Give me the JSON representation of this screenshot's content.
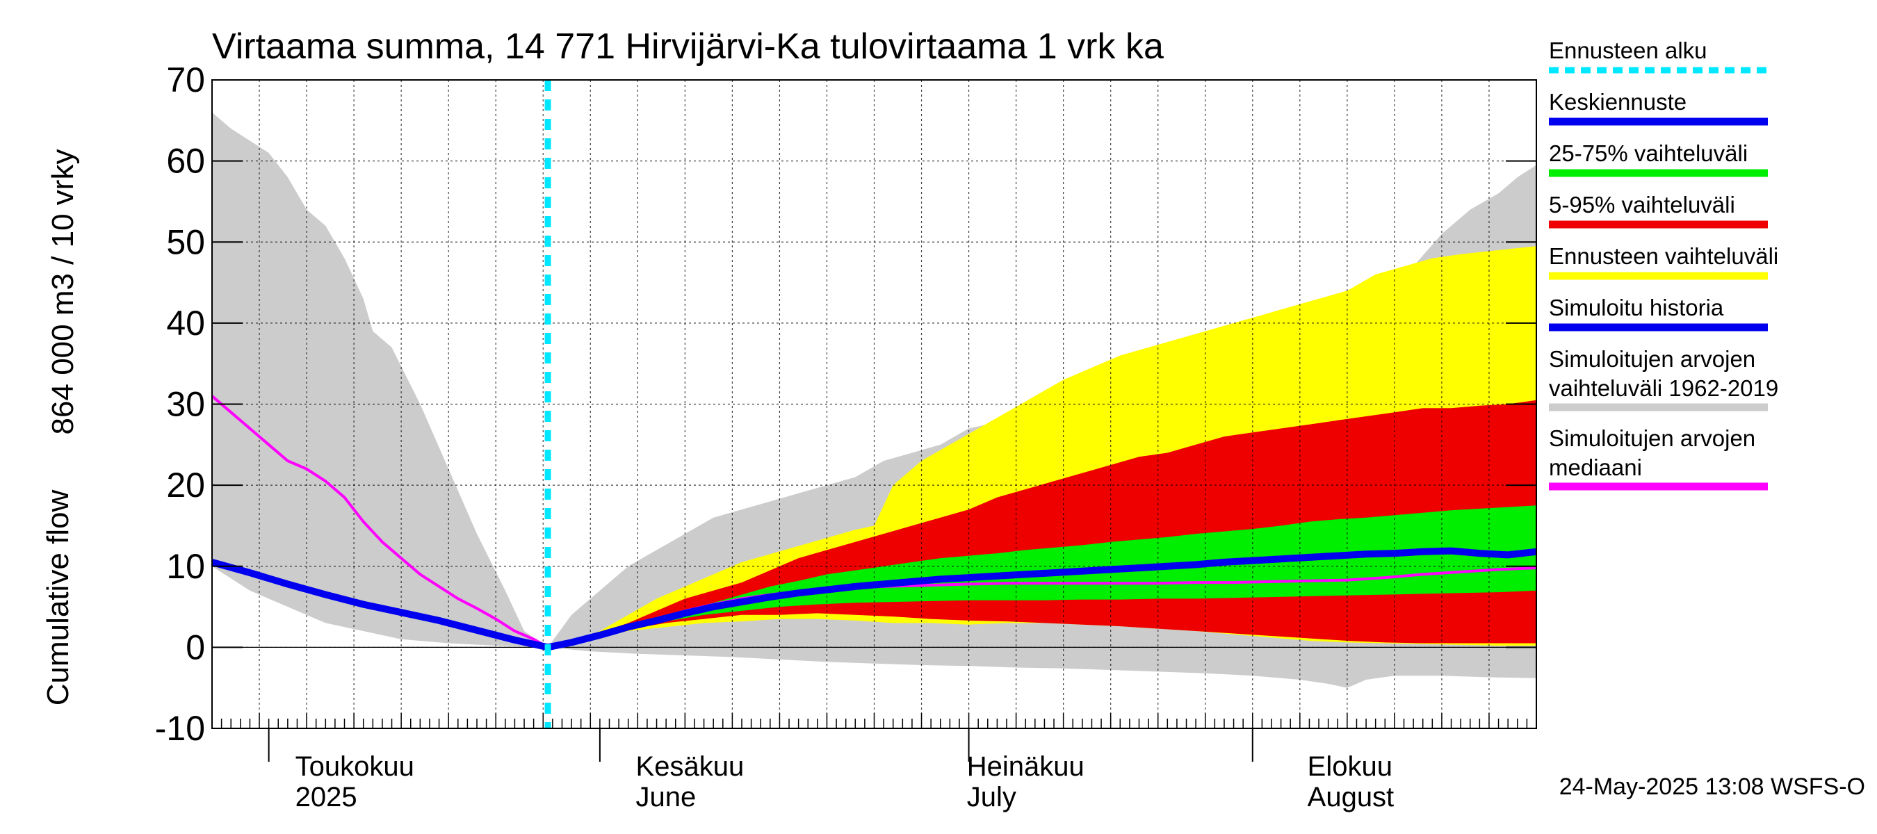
{
  "chart_data": {
    "type": "area",
    "title": "Virtaama summa, 14 771 Hirvijärvi-Ka tulovirtaama 1 vrk ka",
    "ylabel_line1": "864 000 m3 / 10 vrky",
    "ylabel_line2": "Cumulative flow",
    "ylim": [
      -10,
      70
    ],
    "xlim": [
      0,
      140
    ],
    "yticks": [
      -10,
      0,
      10,
      20,
      30,
      40,
      50,
      60,
      70
    ],
    "grid": true,
    "legend_position": "right",
    "forecast_start_x": 35.5,
    "month_labels": [
      {
        "x": 11,
        "line1": "Toukokuu",
        "line2": "2025"
      },
      {
        "x": 47,
        "line1": "Kesäkuu",
        "line2": "June"
      },
      {
        "x": 82,
        "line1": "Heinäkuu",
        "line2": "July"
      },
      {
        "x": 118,
        "line1": "Elokuu",
        "line2": "August"
      }
    ],
    "month_boundaries": [
      6,
      41,
      80,
      110
    ],
    "sim_range_upper": [
      [
        0,
        66
      ],
      [
        2,
        64
      ],
      [
        6,
        61
      ],
      [
        8,
        58
      ],
      [
        10,
        54
      ],
      [
        12,
        52
      ],
      [
        14,
        48
      ],
      [
        16,
        43
      ],
      [
        17,
        39
      ],
      [
        19,
        37
      ],
      [
        22,
        30
      ],
      [
        25,
        22
      ],
      [
        28,
        14
      ],
      [
        31,
        7
      ],
      [
        33,
        2
      ],
      [
        35.5,
        0
      ],
      [
        38,
        4
      ],
      [
        41,
        7
      ],
      [
        44,
        10
      ],
      [
        47,
        12
      ],
      [
        50,
        14
      ],
      [
        53,
        16
      ],
      [
        56,
        17
      ],
      [
        59,
        18
      ],
      [
        62,
        19
      ],
      [
        65,
        20
      ],
      [
        68,
        21
      ],
      [
        71,
        23
      ],
      [
        74,
        24
      ],
      [
        77,
        25
      ],
      [
        80,
        27
      ],
      [
        84,
        28
      ],
      [
        88,
        29
      ],
      [
        92,
        30
      ],
      [
        96,
        31
      ],
      [
        100,
        32
      ],
      [
        104,
        33
      ],
      [
        108,
        34
      ],
      [
        112,
        35
      ],
      [
        115,
        36
      ],
      [
        118,
        38
      ],
      [
        121,
        40
      ],
      [
        124,
        43
      ],
      [
        127,
        47
      ],
      [
        130,
        51
      ],
      [
        133,
        54
      ],
      [
        136,
        56
      ],
      [
        138,
        58
      ],
      [
        140,
        59.5
      ]
    ],
    "sim_range_lower": [
      [
        0,
        10
      ],
      [
        4,
        7
      ],
      [
        8,
        5
      ],
      [
        12,
        3
      ],
      [
        16,
        2
      ],
      [
        20,
        1
      ],
      [
        25,
        0.5
      ],
      [
        30,
        0.2
      ],
      [
        35.5,
        0
      ],
      [
        40,
        -0.5
      ],
      [
        45,
        -0.8
      ],
      [
        50,
        -1
      ],
      [
        55,
        -1.2
      ],
      [
        60,
        -1.5
      ],
      [
        65,
        -1.8
      ],
      [
        70,
        -2
      ],
      [
        75,
        -2.2
      ],
      [
        80,
        -2.3
      ],
      [
        85,
        -2.5
      ],
      [
        90,
        -2.6
      ],
      [
        95,
        -2.8
      ],
      [
        100,
        -3
      ],
      [
        105,
        -3.2
      ],
      [
        110,
        -3.5
      ],
      [
        115,
        -4
      ],
      [
        118,
        -4.5
      ],
      [
        120,
        -5
      ],
      [
        122,
        -4
      ],
      [
        125,
        -3.5
      ],
      [
        130,
        -3.5
      ],
      [
        135,
        -3.7
      ],
      [
        140,
        -3.8
      ]
    ],
    "forecast_range_upper": [
      [
        35.5,
        0
      ],
      [
        38,
        0.8
      ],
      [
        41,
        2
      ],
      [
        44,
        4
      ],
      [
        47,
        6
      ],
      [
        50,
        7.5
      ],
      [
        53,
        9
      ],
      [
        56,
        10.5
      ],
      [
        59,
        11.5
      ],
      [
        62,
        12.5
      ],
      [
        65,
        13.5
      ],
      [
        68,
        14.5
      ],
      [
        70,
        15
      ],
      [
        72,
        20
      ],
      [
        75,
        23
      ],
      [
        78,
        25
      ],
      [
        81,
        27
      ],
      [
        84,
        29
      ],
      [
        87,
        31
      ],
      [
        90,
        33
      ],
      [
        93,
        34.5
      ],
      [
        96,
        36
      ],
      [
        99,
        37
      ],
      [
        102,
        38
      ],
      [
        105,
        39
      ],
      [
        108,
        40
      ],
      [
        111,
        41
      ],
      [
        114,
        42
      ],
      [
        117,
        43
      ],
      [
        120,
        44
      ],
      [
        123,
        46
      ],
      [
        126,
        47
      ],
      [
        129,
        48
      ],
      [
        132,
        48.5
      ],
      [
        136,
        49
      ],
      [
        140,
        49.5
      ]
    ],
    "forecast_range_lower": [
      [
        35.5,
        0
      ],
      [
        40,
        1
      ],
      [
        44,
        2
      ],
      [
        48,
        2.5
      ],
      [
        52,
        3
      ],
      [
        56,
        3.2
      ],
      [
        60,
        3.5
      ],
      [
        64,
        3.5
      ],
      [
        68,
        3.3
      ],
      [
        72,
        3
      ],
      [
        76,
        3
      ],
      [
        80,
        2.8
      ],
      [
        84,
        3
      ],
      [
        88,
        3
      ],
      [
        92,
        2.8
      ],
      [
        96,
        2.6
      ],
      [
        100,
        2.3
      ],
      [
        104,
        2
      ],
      [
        108,
        1.6
      ],
      [
        112,
        1.2
      ],
      [
        116,
        0.8
      ],
      [
        120,
        0.6
      ],
      [
        124,
        0.5
      ],
      [
        128,
        0.4
      ],
      [
        132,
        0.3
      ],
      [
        136,
        0.2
      ],
      [
        140,
        0.2
      ]
    ],
    "p5_95_upper": [
      [
        35.5,
        0
      ],
      [
        38,
        0.7
      ],
      [
        41,
        1.8
      ],
      [
        44,
        3
      ],
      [
        47,
        4.5
      ],
      [
        50,
        6
      ],
      [
        53,
        7
      ],
      [
        56,
        8
      ],
      [
        59,
        9.5
      ],
      [
        62,
        11
      ],
      [
        65,
        12
      ],
      [
        68,
        13
      ],
      [
        71,
        14
      ],
      [
        74,
        15
      ],
      [
        77,
        16
      ],
      [
        80,
        17
      ],
      [
        83,
        18.5
      ],
      [
        86,
        19.5
      ],
      [
        89,
        20.5
      ],
      [
        92,
        21.5
      ],
      [
        95,
        22.5
      ],
      [
        98,
        23.5
      ],
      [
        101,
        24
      ],
      [
        104,
        25
      ],
      [
        107,
        26
      ],
      [
        110,
        26.5
      ],
      [
        113,
        27
      ],
      [
        116,
        27.5
      ],
      [
        119,
        28
      ],
      [
        122,
        28.5
      ],
      [
        125,
        29
      ],
      [
        128,
        29.5
      ],
      [
        131,
        29.5
      ],
      [
        134,
        29.8
      ],
      [
        137,
        30
      ],
      [
        140,
        30.5
      ]
    ],
    "p5_95_lower": [
      [
        35.5,
        0
      ],
      [
        40,
        1.2
      ],
      [
        44,
        2.2
      ],
      [
        48,
        3
      ],
      [
        52,
        3.5
      ],
      [
        56,
        4
      ],
      [
        60,
        4
      ],
      [
        64,
        4.2
      ],
      [
        68,
        4
      ],
      [
        72,
        3.8
      ],
      [
        76,
        3.5
      ],
      [
        80,
        3.3
      ],
      [
        84,
        3.2
      ],
      [
        88,
        3
      ],
      [
        92,
        2.8
      ],
      [
        96,
        2.6
      ],
      [
        100,
        2.3
      ],
      [
        104,
        2
      ],
      [
        108,
        1.7
      ],
      [
        112,
        1.4
      ],
      [
        116,
        1.1
      ],
      [
        120,
        0.8
      ],
      [
        124,
        0.6
      ],
      [
        128,
        0.5
      ],
      [
        132,
        0.5
      ],
      [
        136,
        0.5
      ],
      [
        140,
        0.5
      ]
    ],
    "p25_75_upper": [
      [
        35.5,
        0
      ],
      [
        38,
        0.6
      ],
      [
        41,
        1.5
      ],
      [
        44,
        2.5
      ],
      [
        47,
        3.5
      ],
      [
        50,
        4.5
      ],
      [
        53,
        5.5
      ],
      [
        56,
        6.5
      ],
      [
        59,
        7.5
      ],
      [
        62,
        8.2
      ],
      [
        65,
        9
      ],
      [
        68,
        9.5
      ],
      [
        71,
        10
      ],
      [
        74,
        10.5
      ],
      [
        77,
        11
      ],
      [
        80,
        11.3
      ],
      [
        83,
        11.6
      ],
      [
        86,
        12
      ],
      [
        89,
        12.3
      ],
      [
        92,
        12.6
      ],
      [
        95,
        13
      ],
      [
        98,
        13.3
      ],
      [
        101,
        13.6
      ],
      [
        104,
        14
      ],
      [
        107,
        14.3
      ],
      [
        110,
        14.6
      ],
      [
        113,
        15
      ],
      [
        116,
        15.5
      ],
      [
        119,
        15.8
      ],
      [
        122,
        16
      ],
      [
        125,
        16.3
      ],
      [
        128,
        16.6
      ],
      [
        131,
        16.9
      ],
      [
        134,
        17.1
      ],
      [
        137,
        17.3
      ],
      [
        140,
        17.5
      ]
    ],
    "p25_75_lower": [
      [
        35.5,
        0
      ],
      [
        40,
        1.2
      ],
      [
        44,
        2.3
      ],
      [
        48,
        3.2
      ],
      [
        52,
        4
      ],
      [
        56,
        4.5
      ],
      [
        60,
        5
      ],
      [
        64,
        5.3
      ],
      [
        68,
        5.5
      ],
      [
        72,
        5.6
      ],
      [
        76,
        5.7
      ],
      [
        80,
        5.8
      ],
      [
        84,
        5.8
      ],
      [
        88,
        5.8
      ],
      [
        92,
        5.9
      ],
      [
        96,
        5.9
      ],
      [
        100,
        6
      ],
      [
        104,
        6
      ],
      [
        108,
        6.1
      ],
      [
        112,
        6.2
      ],
      [
        116,
        6.3
      ],
      [
        120,
        6.4
      ],
      [
        124,
        6.5
      ],
      [
        128,
        6.6
      ],
      [
        132,
        6.7
      ],
      [
        136,
        6.8
      ],
      [
        140,
        7
      ]
    ],
    "mean_forecast": [
      [
        35.5,
        0
      ],
      [
        38,
        0.6
      ],
      [
        41,
        1.5
      ],
      [
        44,
        2.5
      ],
      [
        47,
        3.3
      ],
      [
        50,
        4.2
      ],
      [
        53,
        5
      ],
      [
        56,
        5.6
      ],
      [
        59,
        6.2
      ],
      [
        62,
        6.7
      ],
      [
        65,
        7.1
      ],
      [
        68,
        7.5
      ],
      [
        71,
        7.8
      ],
      [
        74,
        8.1
      ],
      [
        77,
        8.4
      ],
      [
        80,
        8.6
      ],
      [
        83,
        8.8
      ],
      [
        86,
        9
      ],
      [
        89,
        9.2
      ],
      [
        92,
        9.4
      ],
      [
        95,
        9.6
      ],
      [
        98,
        9.8
      ],
      [
        101,
        10
      ],
      [
        104,
        10.2
      ],
      [
        107,
        10.5
      ],
      [
        110,
        10.7
      ],
      [
        113,
        10.9
      ],
      [
        116,
        11.1
      ],
      [
        119,
        11.3
      ],
      [
        122,
        11.5
      ],
      [
        125,
        11.6
      ],
      [
        128,
        11.8
      ],
      [
        131,
        11.9
      ],
      [
        134,
        11.6
      ],
      [
        137,
        11.4
      ],
      [
        140,
        11.8
      ]
    ],
    "sim_history": [
      [
        0,
        10.5
      ],
      [
        4,
        9.2
      ],
      [
        8,
        7.8
      ],
      [
        12,
        6.5
      ],
      [
        16,
        5.3
      ],
      [
        20,
        4.3
      ],
      [
        24,
        3.3
      ],
      [
        28,
        2.1
      ],
      [
        32,
        0.9
      ],
      [
        35.5,
        0
      ]
    ],
    "sim_median": [
      [
        0,
        31
      ],
      [
        2,
        29
      ],
      [
        4,
        27
      ],
      [
        6,
        25
      ],
      [
        8,
        23
      ],
      [
        10,
        22
      ],
      [
        12,
        20.5
      ],
      [
        14,
        18.5
      ],
      [
        16,
        15.5
      ],
      [
        18,
        13
      ],
      [
        20,
        11
      ],
      [
        22,
        9
      ],
      [
        24,
        7.5
      ],
      [
        26,
        6
      ],
      [
        28,
        4.8
      ],
      [
        30,
        3.5
      ],
      [
        32,
        2
      ],
      [
        34,
        1
      ],
      [
        35.5,
        0
      ],
      [
        38,
        0.7
      ],
      [
        41,
        1.5
      ],
      [
        44,
        2.5
      ],
      [
        47,
        3.5
      ],
      [
        50,
        4.5
      ],
      [
        53,
        5.3
      ],
      [
        56,
        6
      ],
      [
        59,
        6.5
      ],
      [
        62,
        6.9
      ],
      [
        65,
        7.2
      ],
      [
        68,
        7.4
      ],
      [
        71,
        7.5
      ],
      [
        74,
        7.6
      ],
      [
        77,
        7.7
      ],
      [
        80,
        7.8
      ],
      [
        84,
        7.9
      ],
      [
        88,
        7.9
      ],
      [
        92,
        7.9
      ],
      [
        96,
        7.9
      ],
      [
        100,
        7.9
      ],
      [
        104,
        8
      ],
      [
        108,
        8
      ],
      [
        112,
        8.1
      ],
      [
        116,
        8.2
      ],
      [
        120,
        8.3
      ],
      [
        124,
        8.6
      ],
      [
        128,
        9
      ],
      [
        132,
        9.3
      ],
      [
        136,
        9.6
      ],
      [
        140,
        9.8
      ]
    ],
    "series": [
      {
        "name": "Ennusteen alku",
        "color": "#00e8ff",
        "style": "dashed"
      },
      {
        "name": "Keskiennuste",
        "color": "#0000ee",
        "style": "line"
      },
      {
        "name": "25-75% vaihteluväli",
        "color": "#00ee00",
        "style": "band"
      },
      {
        "name": "5-95% vaihteluväli",
        "color": "#ee0000",
        "style": "band"
      },
      {
        "name": "Ennusteen vaihteluväli",
        "color": "#ffff00",
        "style": "band"
      },
      {
        "name": "Simuloitu historia",
        "color": "#0000ee",
        "style": "line"
      },
      {
        "name": "Simuloitujen arvojen vaihteluväli 1962-2019",
        "color": "#cccccc",
        "style": "band"
      },
      {
        "name": "Simuloitujen arvojen mediaani",
        "color": "#ff00ff",
        "style": "line"
      }
    ],
    "legend": [
      {
        "line1": "Ennusteen alku",
        "line2": "",
        "color": "#00e8ff",
        "dashed": true
      },
      {
        "line1": "Keskiennuste",
        "line2": "",
        "color": "#0000ee",
        "dashed": false
      },
      {
        "line1": "25-75% vaihteluväli",
        "line2": "",
        "color": "#00ee00",
        "dashed": false
      },
      {
        "line1": "5-95% vaihteluväli",
        "line2": "",
        "color": "#ee0000",
        "dashed": false
      },
      {
        "line1": "Ennusteen vaihteluväli",
        "line2": "",
        "color": "#ffff00",
        "dashed": false
      },
      {
        "line1": "Simuloitu historia",
        "line2": "",
        "color": "#0000ee",
        "dashed": false
      },
      {
        "line1": "Simuloitujen arvojen",
        "line2": "vaihteluväli 1962-2019",
        "color": "#cccccc",
        "dashed": false
      },
      {
        "line1": "Simuloitujen arvojen",
        "line2": "mediaani",
        "color": "#ff00ff",
        "dashed": false
      }
    ],
    "footer": "24-May-2025 13:08 WSFS-O"
  }
}
